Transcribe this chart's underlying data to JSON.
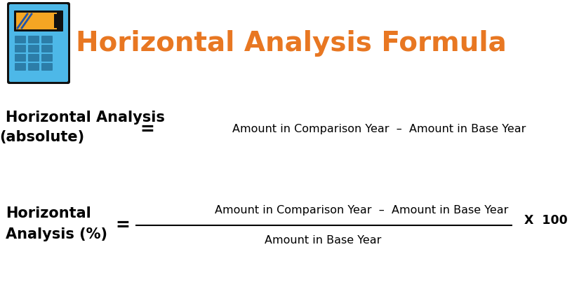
{
  "title": "Horizontal Analysis Formula",
  "title_color": "#E87722",
  "bg_color": "#FFFFFF",
  "text_color": "#000000",
  "formula1_label_line1": "Horizontal Analysis",
  "formula1_label_line2": "(absolute)",
  "formula1_eq": "=",
  "formula1_rhs": "Amount in Comparison Year  –  Amount in Base Year",
  "formula2_label_line1": "Horizontal",
  "formula2_label_line2": "Analysis (%)",
  "formula2_eq": "=",
  "formula2_numerator": "Amount in Comparison Year  –  Amount in Base Year",
  "formula2_denominator": "Amount in Base Year",
  "formula2_multiplier": "X  100",
  "label_fontsize": 15,
  "formula_fontsize": 11.5,
  "title_fontsize": 28,
  "calc_body_color": "#4DB8E8",
  "calc_screen_color": "#F5A623",
  "calc_btn_color": "#2C7DA8",
  "calc_border_color": "#222222"
}
